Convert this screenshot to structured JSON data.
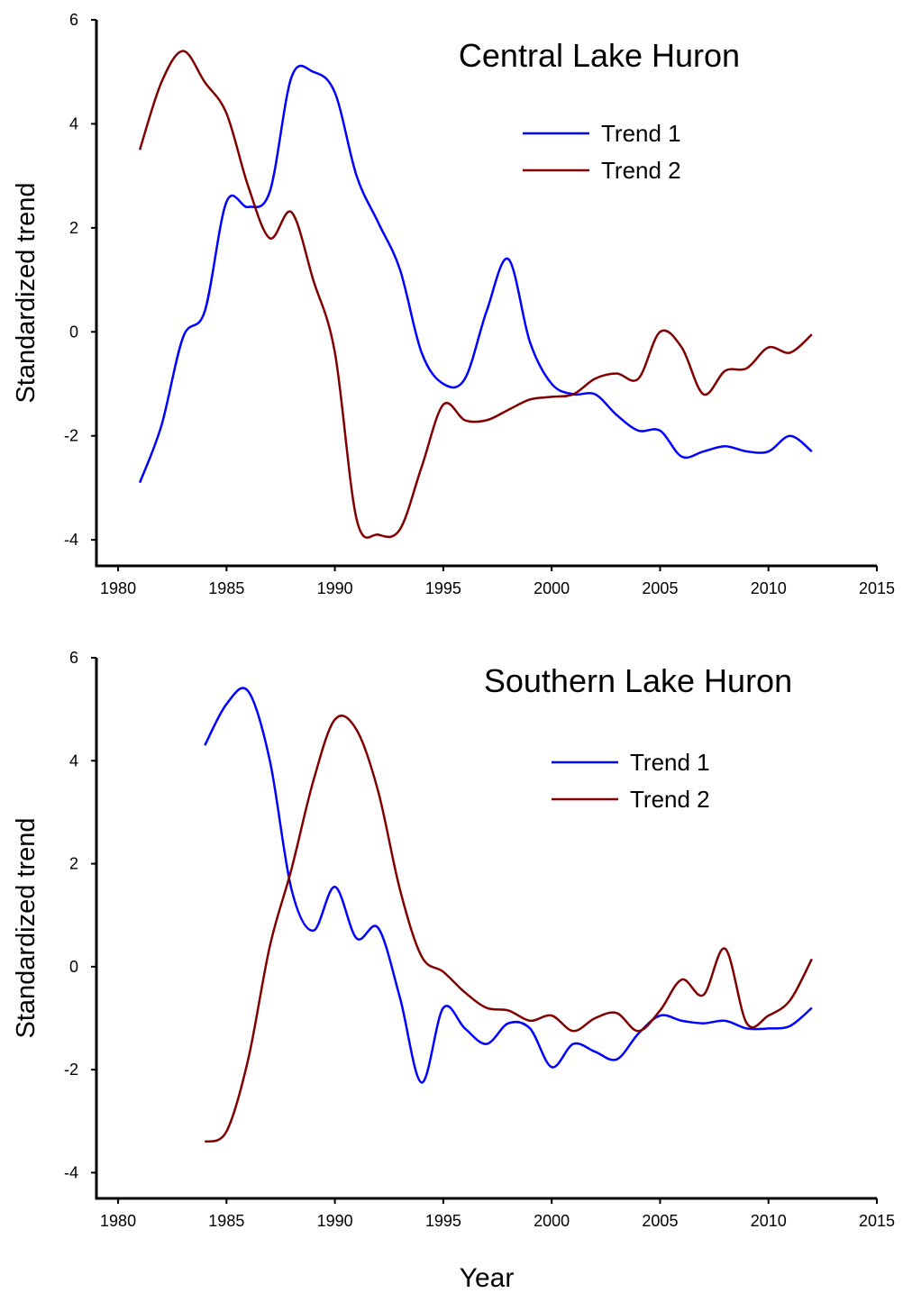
{
  "chart_data": [
    {
      "type": "line",
      "title": "Central Lake Huron",
      "y_label": "Standardized trend",
      "x": [
        1981,
        1982,
        1983,
        1984,
        1985,
        1986,
        1987,
        1988,
        1989,
        1990,
        1991,
        1992,
        1993,
        1994,
        1995,
        1996,
        1997,
        1998,
        1999,
        2000,
        2001,
        2002,
        2003,
        2004,
        2005,
        2006,
        2007,
        2008,
        2009,
        2010,
        2011,
        2012
      ],
      "series": [
        {
          "name": "Trend 1",
          "color": "#0000ff",
          "values": [
            -2.9,
            -1.8,
            -0.1,
            0.4,
            2.5,
            2.4,
            2.7,
            4.9,
            5.0,
            4.6,
            3.0,
            2.1,
            1.2,
            -0.4,
            -1.0,
            -0.9,
            0.4,
            1.4,
            -0.2,
            -1.0,
            -1.2,
            -1.2,
            -1.6,
            -1.9,
            -1.9,
            -2.4,
            -2.3,
            -2.2,
            -2.3,
            -2.3,
            -2.0,
            -2.3
          ]
        },
        {
          "name": "Trend 2",
          "color": "#800000",
          "values": [
            3.5,
            4.8,
            5.4,
            4.8,
            4.2,
            2.8,
            1.8,
            2.3,
            1.0,
            -0.4,
            -3.6,
            -3.9,
            -3.8,
            -2.6,
            -1.4,
            -1.7,
            -1.7,
            -1.5,
            -1.3,
            -1.25,
            -1.2,
            -0.9,
            -0.8,
            -0.9,
            0.0,
            -0.3,
            -1.2,
            -0.75,
            -0.7,
            -0.3,
            -0.4,
            -0.05
          ]
        }
      ],
      "xlim": [
        1979,
        2015
      ],
      "xticks": [
        1980,
        1985,
        1990,
        1995,
        2000,
        2005,
        2010,
        2015
      ],
      "ylim": [
        -4.5,
        6
      ],
      "yticks": [
        -4,
        -2,
        0,
        2,
        4,
        6
      ]
    },
    {
      "type": "line",
      "title": "Southern Lake Huron",
      "y_label": "Standardized trend",
      "x_label": "Year",
      "x": [
        1984,
        1985,
        1986,
        1987,
        1988,
        1989,
        1990,
        1991,
        1992,
        1993,
        1994,
        1995,
        1996,
        1997,
        1998,
        1999,
        2000,
        2001,
        2002,
        2003,
        2004,
        2005,
        2006,
        2007,
        2008,
        2009,
        2010,
        2011,
        2012
      ],
      "series": [
        {
          "name": "Trend 1",
          "color": "#0000ff",
          "values": [
            4.3,
            5.1,
            5.35,
            4.0,
            1.5,
            0.7,
            1.55,
            0.55,
            0.75,
            -0.6,
            -2.25,
            -0.8,
            -1.2,
            -1.5,
            -1.1,
            -1.2,
            -1.95,
            -1.5,
            -1.65,
            -1.8,
            -1.3,
            -0.95,
            -1.05,
            -1.1,
            -1.05,
            -1.2,
            -1.2,
            -1.15,
            -0.8
          ]
        },
        {
          "name": "Trend 2",
          "color": "#800000",
          "values": [
            -3.4,
            -3.2,
            -1.8,
            0.4,
            1.9,
            3.6,
            4.8,
            4.6,
            3.4,
            1.5,
            0.2,
            -0.1,
            -0.5,
            -0.8,
            -0.85,
            -1.05,
            -0.95,
            -1.25,
            -1.0,
            -0.9,
            -1.25,
            -0.85,
            -0.25,
            -0.55,
            0.35,
            -1.1,
            -0.95,
            -0.65,
            0.15
          ]
        }
      ],
      "xlim": [
        1979,
        2015
      ],
      "xticks": [
        1980,
        1985,
        1990,
        1995,
        2000,
        2005,
        2010,
        2015
      ],
      "ylim": [
        -4.5,
        6
      ],
      "yticks": [
        -4,
        -2,
        0,
        2,
        4,
        6
      ]
    }
  ]
}
